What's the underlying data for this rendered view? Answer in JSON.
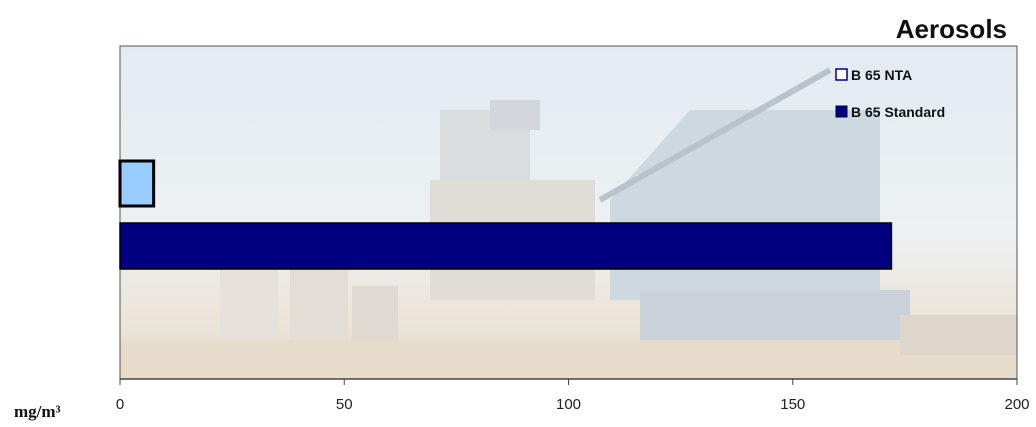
{
  "chart_data": {
    "type": "bar",
    "orientation": "horizontal",
    "title": "Aerosols",
    "unit_label": "mg/m³",
    "xlim": [
      0,
      200
    ],
    "xticks": [
      0,
      50,
      100,
      150,
      200
    ],
    "grid": false,
    "legend_position": "top-right",
    "background": "photo of an asphalt mixing plant",
    "series": [
      {
        "name": "B 65 NTA",
        "value": 7.5,
        "color": "#99ccff"
      },
      {
        "name": "B 65 Standard",
        "value": 172,
        "color": "#000080"
      }
    ]
  }
}
